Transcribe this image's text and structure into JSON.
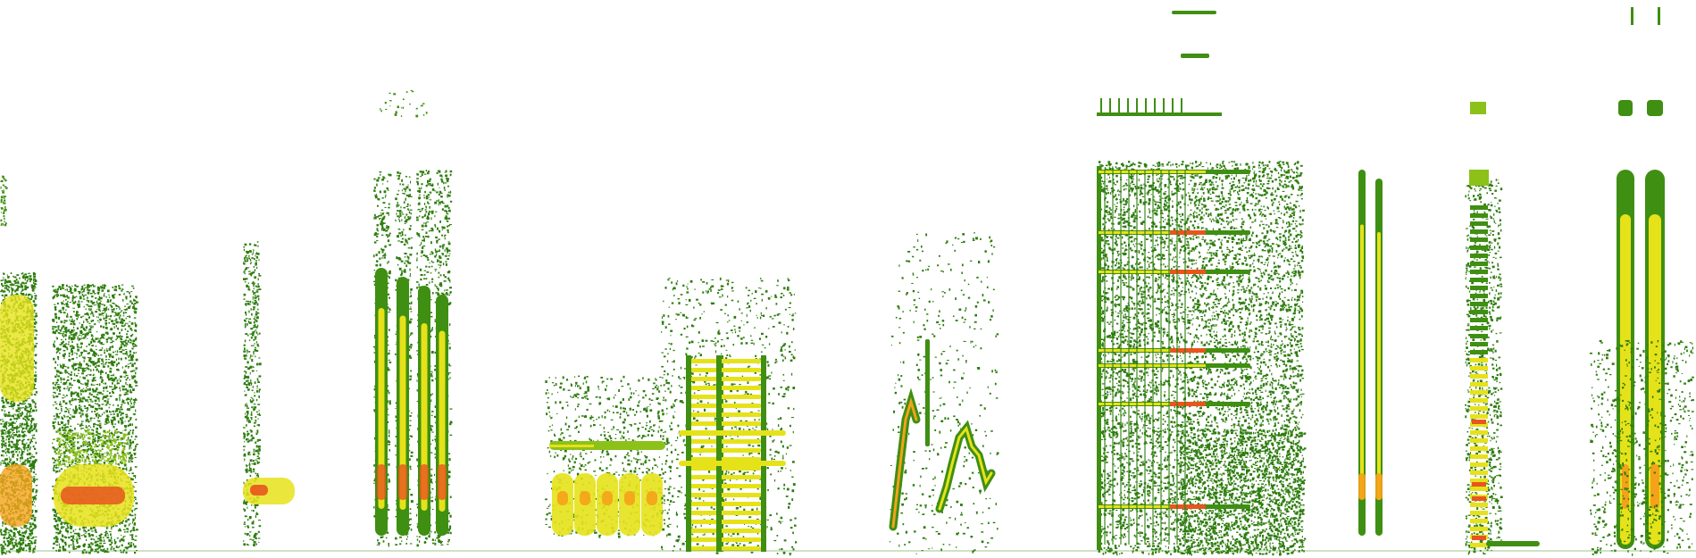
{
  "image": {
    "kind": "spectrogram",
    "background": "#ffffff",
    "palette": [
      "#2e7d0e",
      "#3f8f12",
      "#8cc11a",
      "#e6e21a",
      "#f5a21a",
      "#e8551e"
    ],
    "grid": false,
    "text": []
  }
}
